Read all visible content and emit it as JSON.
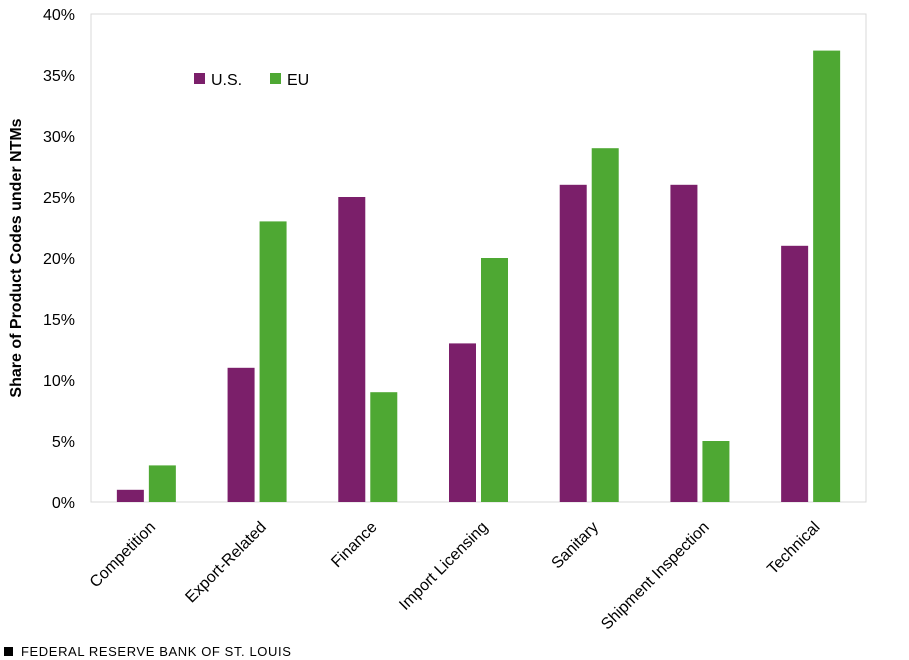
{
  "chart_data": {
    "type": "bar",
    "ylabel": "Share of Product Codes under NTMs",
    "ylim": [
      0,
      40
    ],
    "yticks": [
      "0%",
      "5%",
      "10%",
      "15%",
      "20%",
      "25%",
      "30%",
      "35%",
      "40%"
    ],
    "categories": [
      "Competition",
      "Export-Related",
      "Finance",
      "Import Licensing",
      "Sanitary",
      "Shipment Inspection",
      "Technical"
    ],
    "series": [
      {
        "name": "U.S.",
        "color": "#7b1f6a",
        "values": [
          1,
          11,
          25,
          13,
          26,
          26,
          21
        ]
      },
      {
        "name": "EU",
        "color": "#4ea833",
        "values": [
          3,
          23,
          9,
          20,
          29,
          5,
          37
        ]
      }
    ],
    "grid": false,
    "legend": "top-left"
  },
  "footer": {
    "text": "FEDERAL RESERVE BANK OF ST. LOUIS"
  }
}
